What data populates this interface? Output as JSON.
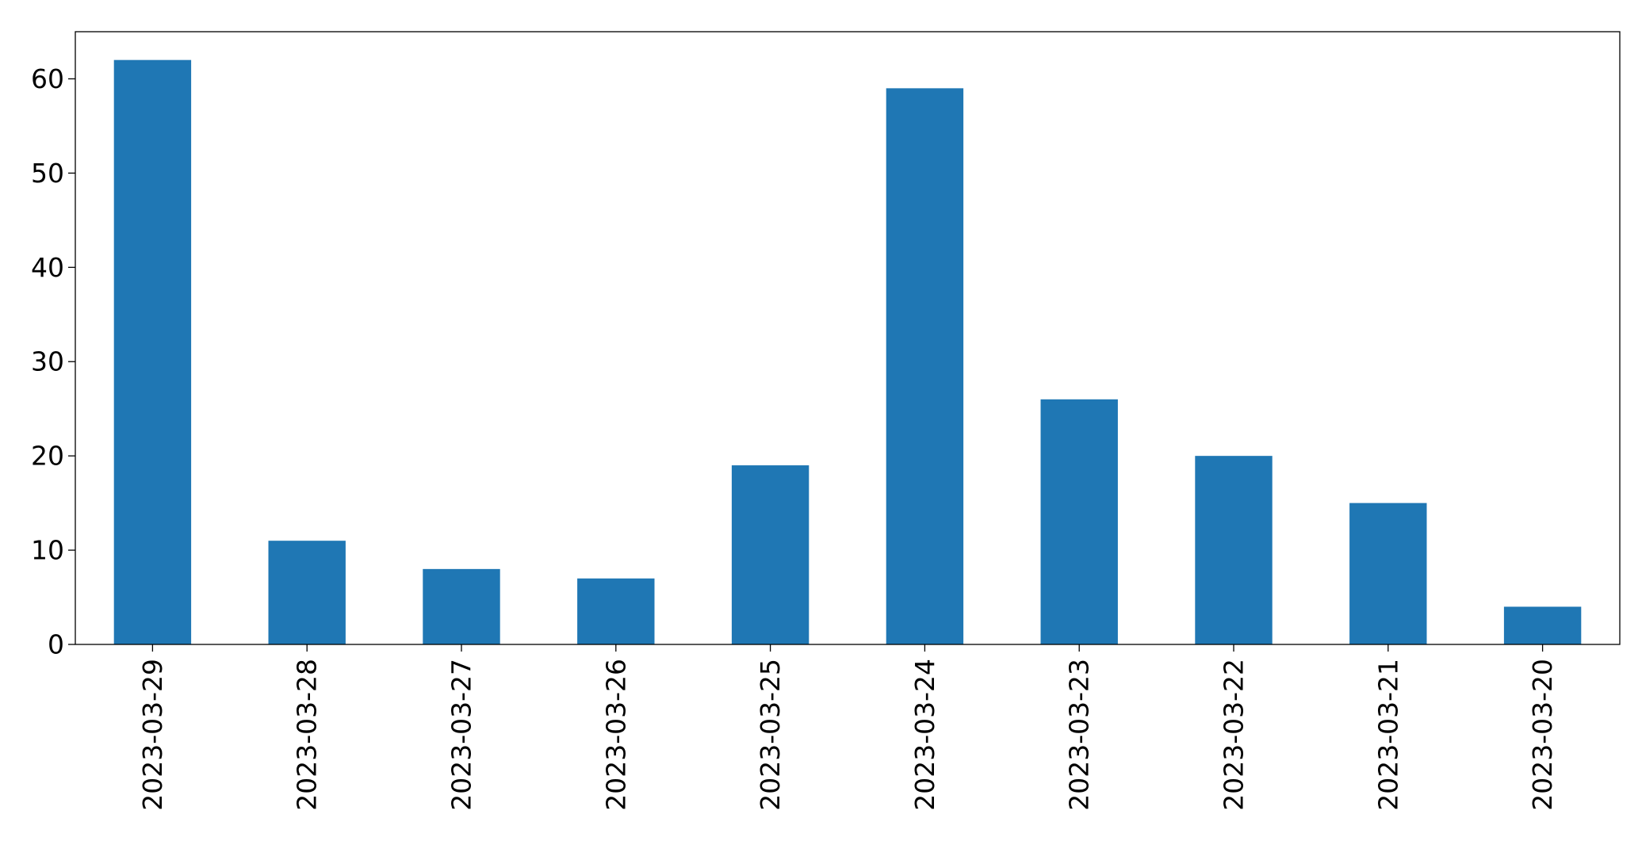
{
  "chart_data": {
    "type": "bar",
    "title": "",
    "xlabel": "",
    "ylabel": "",
    "categories": [
      "2023-03-29",
      "2023-03-28",
      "2023-03-27",
      "2023-03-26",
      "2023-03-25",
      "2023-03-24",
      "2023-03-23",
      "2023-03-22",
      "2023-03-21",
      "2023-03-20"
    ],
    "values": [
      62,
      11,
      8,
      7,
      19,
      59,
      26,
      20,
      15,
      4
    ],
    "ylim": [
      0,
      65
    ],
    "yticks": [
      0,
      10,
      20,
      30,
      40,
      50,
      60
    ],
    "bar_color": "#1f77b4",
    "grid": false,
    "legend": "none"
  }
}
